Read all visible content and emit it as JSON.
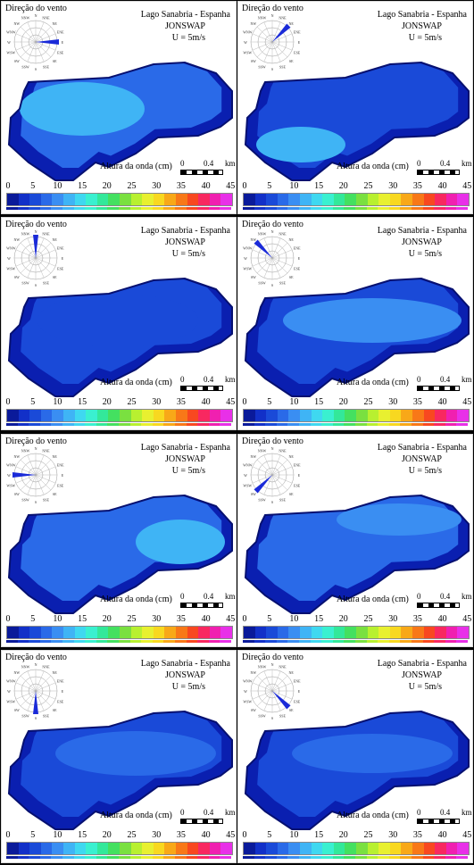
{
  "common": {
    "wind_title": "Direção do vento",
    "lake_title": "Lago Sanabria - Espanha",
    "model": "JONSWAP",
    "wind_speed": "U = 5m/s",
    "wave_label": "Altura da onda (cm)",
    "scale_zero": "0",
    "scale_value": "0.4",
    "scale_unit": "km",
    "compass": [
      "N",
      "NNE",
      "NE",
      "ENE",
      "E",
      "ESE",
      "SE",
      "SSE",
      "S",
      "SSW",
      "SW",
      "WSW",
      "W",
      "WNW",
      "NW",
      "NNW"
    ]
  },
  "colorbar": {
    "ticks": [
      "0",
      "5",
      "10",
      "15",
      "20",
      "25",
      "30",
      "35",
      "40",
      "45"
    ],
    "colors": [
      "#0a1a9a",
      "#1230c8",
      "#1a4ad8",
      "#2a6ae8",
      "#3a8ef2",
      "#3fb4f5",
      "#3fd8f0",
      "#3af0d0",
      "#33e89a",
      "#44e060",
      "#7ae040",
      "#b8f030",
      "#e8f030",
      "#f8d820",
      "#f8a818",
      "#f87818",
      "#f84820",
      "#f82860",
      "#f020b0",
      "#e830e8"
    ]
  },
  "chart_data": [
    {
      "type": "heatmap",
      "panel": 1,
      "wind_direction": "E",
      "height_range_cm": [
        0,
        10
      ]
    },
    {
      "type": "heatmap",
      "panel": 2,
      "wind_direction": "NE",
      "height_range_cm": [
        0,
        10
      ]
    },
    {
      "type": "heatmap",
      "panel": 3,
      "wind_direction": "N",
      "height_range_cm": [
        0,
        7
      ]
    },
    {
      "type": "heatmap",
      "panel": 4,
      "wind_direction": "NW",
      "height_range_cm": [
        0,
        10
      ]
    },
    {
      "type": "heatmap",
      "panel": 5,
      "wind_direction": "W",
      "height_range_cm": [
        0,
        12
      ]
    },
    {
      "type": "heatmap",
      "panel": 6,
      "wind_direction": "SW",
      "height_range_cm": [
        0,
        12
      ]
    },
    {
      "type": "heatmap",
      "panel": 7,
      "wind_direction": "S",
      "height_range_cm": [
        0,
        8
      ]
    },
    {
      "type": "heatmap",
      "panel": 8,
      "wind_direction": "SE",
      "height_range_cm": [
        0,
        10
      ]
    }
  ]
}
